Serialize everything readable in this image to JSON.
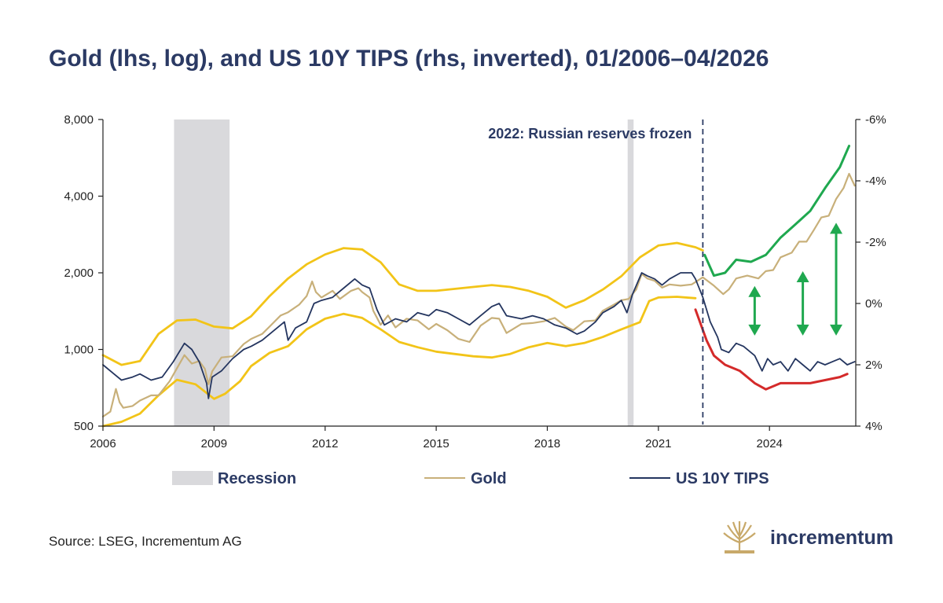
{
  "title": "Gold (lhs, log), and US 10Y TIPS (rhs, inverted), 01/2006–04/2026",
  "source": "Source: LSEG, Incrementum AG",
  "brand": {
    "name": "incrementum",
    "logo_icon": "tree-logo-icon"
  },
  "colors": {
    "title": "#2b3a64",
    "gold": "#c8b07a",
    "tips": "#24355f",
    "band": "#f2c418",
    "recession": "#d9d9dc",
    "upper_channel": "#1fa84f",
    "lower_channel": "#d42a2a",
    "arrows": "#1fa84f"
  },
  "chart_data": {
    "type": "line",
    "title": "Gold (lhs, log), and US 10Y TIPS (rhs, inverted), 01/2006–04/2026",
    "x_ticks": [
      "2006",
      "2009",
      "2012",
      "2015",
      "2018",
      "2021",
      "2024"
    ],
    "x_range": [
      2006.0,
      2026.33
    ],
    "y_left": {
      "scale": "log",
      "ylim": [
        500,
        8000
      ],
      "ticks": [
        500,
        1000,
        2000,
        4000,
        8000
      ],
      "tick_labels": [
        "500",
        "1,000",
        "2,000",
        "4,000",
        "8,000"
      ]
    },
    "y_right": {
      "inverted": true,
      "ylim": [
        4,
        -6
      ],
      "ticks": [
        -6,
        -4,
        -2,
        0,
        2,
        4
      ],
      "tick_labels": [
        "-6%",
        "-4%",
        "-2%",
        "0%",
        "2%",
        "4%"
      ]
    },
    "grid": false,
    "legend_position": "bottom",
    "legend": [
      {
        "name": "Recession",
        "kind": "box"
      },
      {
        "name": "Gold",
        "kind": "line"
      },
      {
        "name": "US 10Y TIPS",
        "kind": "line"
      }
    ],
    "recessions": [
      [
        2007.92,
        2009.42
      ],
      [
        2020.17,
        2020.33
      ]
    ],
    "annotation": {
      "text": "2022: Russian reserves frozen",
      "x": 2022.2
    },
    "series": [
      {
        "name": "Gold",
        "axis": "left",
        "points": [
          [
            2006.0,
            545
          ],
          [
            2006.2,
            570
          ],
          [
            2006.35,
            700
          ],
          [
            2006.45,
            620
          ],
          [
            2006.55,
            590
          ],
          [
            2006.8,
            600
          ],
          [
            2007.0,
            630
          ],
          [
            2007.3,
            660
          ],
          [
            2007.5,
            660
          ],
          [
            2007.8,
            750
          ],
          [
            2007.95,
            820
          ],
          [
            2008.2,
            950
          ],
          [
            2008.4,
            880
          ],
          [
            2008.6,
            900
          ],
          [
            2008.75,
            840
          ],
          [
            2008.85,
            730
          ],
          [
            2008.95,
            820
          ],
          [
            2009.2,
            930
          ],
          [
            2009.5,
            940
          ],
          [
            2009.8,
            1050
          ],
          [
            2010.0,
            1100
          ],
          [
            2010.3,
            1150
          ],
          [
            2010.5,
            1230
          ],
          [
            2010.8,
            1360
          ],
          [
            2011.0,
            1400
          ],
          [
            2011.3,
            1500
          ],
          [
            2011.5,
            1620
          ],
          [
            2011.65,
            1850
          ],
          [
            2011.75,
            1680
          ],
          [
            2011.9,
            1600
          ],
          [
            2012.2,
            1700
          ],
          [
            2012.4,
            1580
          ],
          [
            2012.7,
            1700
          ],
          [
            2012.9,
            1740
          ],
          [
            2013.0,
            1680
          ],
          [
            2013.2,
            1600
          ],
          [
            2013.3,
            1420
          ],
          [
            2013.5,
            1250
          ],
          [
            2013.7,
            1360
          ],
          [
            2013.9,
            1220
          ],
          [
            2014.2,
            1320
          ],
          [
            2014.5,
            1300
          ],
          [
            2014.8,
            1200
          ],
          [
            2015.0,
            1260
          ],
          [
            2015.3,
            1190
          ],
          [
            2015.6,
            1100
          ],
          [
            2015.9,
            1070
          ],
          [
            2016.2,
            1240
          ],
          [
            2016.5,
            1330
          ],
          [
            2016.7,
            1320
          ],
          [
            2016.9,
            1160
          ],
          [
            2017.3,
            1260
          ],
          [
            2017.6,
            1270
          ],
          [
            2017.9,
            1290
          ],
          [
            2018.2,
            1330
          ],
          [
            2018.5,
            1230
          ],
          [
            2018.7,
            1190
          ],
          [
            2019.0,
            1290
          ],
          [
            2019.3,
            1300
          ],
          [
            2019.5,
            1420
          ],
          [
            2019.8,
            1500
          ],
          [
            2020.0,
            1560
          ],
          [
            2020.2,
            1580
          ],
          [
            2020.4,
            1720
          ],
          [
            2020.55,
            1980
          ],
          [
            2020.7,
            1900
          ],
          [
            2020.9,
            1860
          ],
          [
            2021.1,
            1750
          ],
          [
            2021.3,
            1800
          ],
          [
            2021.6,
            1780
          ],
          [
            2021.9,
            1800
          ],
          [
            2022.2,
            1920
          ],
          [
            2022.5,
            1780
          ],
          [
            2022.75,
            1650
          ],
          [
            2022.9,
            1720
          ],
          [
            2023.1,
            1900
          ],
          [
            2023.4,
            1950
          ],
          [
            2023.7,
            1900
          ],
          [
            2023.9,
            2030
          ],
          [
            2024.1,
            2050
          ],
          [
            2024.3,
            2300
          ],
          [
            2024.6,
            2400
          ],
          [
            2024.8,
            2650
          ],
          [
            2025.0,
            2650
          ],
          [
            2025.2,
            2950
          ],
          [
            2025.4,
            3300
          ],
          [
            2025.6,
            3350
          ],
          [
            2025.8,
            3900
          ],
          [
            2026.0,
            4300
          ],
          [
            2026.15,
            4900
          ],
          [
            2026.3,
            4400
          ]
        ]
      },
      {
        "name": "US 10Y TIPS",
        "axis": "right",
        "points": [
          [
            2006.0,
            2.0
          ],
          [
            2006.3,
            2.3
          ],
          [
            2006.5,
            2.5
          ],
          [
            2006.8,
            2.4
          ],
          [
            2007.0,
            2.3
          ],
          [
            2007.3,
            2.5
          ],
          [
            2007.6,
            2.4
          ],
          [
            2007.9,
            1.9
          ],
          [
            2008.2,
            1.3
          ],
          [
            2008.4,
            1.5
          ],
          [
            2008.6,
            1.9
          ],
          [
            2008.8,
            2.6
          ],
          [
            2008.85,
            3.1
          ],
          [
            2008.95,
            2.4
          ],
          [
            2009.2,
            2.2
          ],
          [
            2009.5,
            1.8
          ],
          [
            2009.8,
            1.5
          ],
          [
            2010.0,
            1.4
          ],
          [
            2010.3,
            1.2
          ],
          [
            2010.6,
            0.9
          ],
          [
            2010.9,
            0.6
          ],
          [
            2011.0,
            1.2
          ],
          [
            2011.2,
            0.8
          ],
          [
            2011.5,
            0.6
          ],
          [
            2011.7,
            0.0
          ],
          [
            2011.9,
            -0.1
          ],
          [
            2012.2,
            -0.2
          ],
          [
            2012.5,
            -0.5
          ],
          [
            2012.8,
            -0.8
          ],
          [
            2013.0,
            -0.6
          ],
          [
            2013.2,
            -0.5
          ],
          [
            2013.4,
            0.2
          ],
          [
            2013.6,
            0.7
          ],
          [
            2013.9,
            0.5
          ],
          [
            2014.2,
            0.6
          ],
          [
            2014.5,
            0.3
          ],
          [
            2014.8,
            0.4
          ],
          [
            2015.0,
            0.2
          ],
          [
            2015.3,
            0.3
          ],
          [
            2015.6,
            0.5
          ],
          [
            2015.9,
            0.7
          ],
          [
            2016.2,
            0.4
          ],
          [
            2016.5,
            0.1
          ],
          [
            2016.7,
            0.0
          ],
          [
            2016.9,
            0.4
          ],
          [
            2017.3,
            0.5
          ],
          [
            2017.6,
            0.4
          ],
          [
            2017.9,
            0.5
          ],
          [
            2018.2,
            0.7
          ],
          [
            2018.5,
            0.8
          ],
          [
            2018.8,
            1.0
          ],
          [
            2019.0,
            0.9
          ],
          [
            2019.3,
            0.6
          ],
          [
            2019.5,
            0.3
          ],
          [
            2019.8,
            0.1
          ],
          [
            2020.0,
            -0.1
          ],
          [
            2020.15,
            0.3
          ],
          [
            2020.3,
            -0.3
          ],
          [
            2020.55,
            -1.0
          ],
          [
            2020.7,
            -0.9
          ],
          [
            2020.9,
            -0.8
          ],
          [
            2021.1,
            -0.6
          ],
          [
            2021.3,
            -0.8
          ],
          [
            2021.6,
            -1.0
          ],
          [
            2021.9,
            -1.0
          ],
          [
            2022.0,
            -0.8
          ],
          [
            2022.2,
            -0.2
          ],
          [
            2022.4,
            0.6
          ],
          [
            2022.6,
            1.1
          ],
          [
            2022.7,
            1.5
          ],
          [
            2022.9,
            1.6
          ],
          [
            2023.1,
            1.3
          ],
          [
            2023.3,
            1.4
          ],
          [
            2023.6,
            1.7
          ],
          [
            2023.8,
            2.2
          ],
          [
            2023.95,
            1.8
          ],
          [
            2024.1,
            2.0
          ],
          [
            2024.3,
            1.9
          ],
          [
            2024.5,
            2.2
          ],
          [
            2024.7,
            1.8
          ],
          [
            2024.9,
            2.0
          ],
          [
            2025.1,
            2.2
          ],
          [
            2025.3,
            1.9
          ],
          [
            2025.5,
            2.0
          ],
          [
            2025.7,
            1.9
          ],
          [
            2025.9,
            1.8
          ],
          [
            2026.1,
            2.0
          ],
          [
            2026.3,
            1.9
          ]
        ]
      },
      {
        "name": "",
        "axis": "left",
        "points": [
          [
            2006.0,
            950
          ],
          [
            2006.5,
            870
          ],
          [
            2007.0,
            900
          ],
          [
            2007.5,
            1150
          ],
          [
            2008.0,
            1300
          ],
          [
            2008.5,
            1310
          ],
          [
            2009.0,
            1230
          ],
          [
            2009.5,
            1210
          ],
          [
            2010.0,
            1350
          ],
          [
            2010.5,
            1620
          ],
          [
            2011.0,
            1900
          ],
          [
            2011.5,
            2160
          ],
          [
            2012.0,
            2360
          ],
          [
            2012.5,
            2500
          ],
          [
            2013.0,
            2470
          ],
          [
            2013.5,
            2200
          ],
          [
            2014.0,
            1800
          ],
          [
            2014.5,
            1700
          ],
          [
            2015.0,
            1700
          ],
          [
            2016.0,
            1760
          ],
          [
            2016.5,
            1790
          ],
          [
            2017.0,
            1760
          ],
          [
            2017.5,
            1700
          ],
          [
            2018.0,
            1610
          ],
          [
            2018.5,
            1460
          ],
          [
            2019.0,
            1560
          ],
          [
            2019.5,
            1720
          ],
          [
            2020.0,
            1940
          ],
          [
            2020.5,
            2300
          ],
          [
            2021.0,
            2560
          ],
          [
            2021.5,
            2620
          ],
          [
            2022.0,
            2520
          ],
          [
            2022.2,
            2450
          ]
        ]
      },
      {
        "name": "",
        "axis": "left",
        "points": [
          [
            2006.0,
            500
          ],
          [
            2006.5,
            520
          ],
          [
            2007.0,
            560
          ],
          [
            2007.5,
            660
          ],
          [
            2008.0,
            760
          ],
          [
            2008.5,
            730
          ],
          [
            2009.0,
            640
          ],
          [
            2009.3,
            670
          ],
          [
            2009.7,
            750
          ],
          [
            2010.0,
            860
          ],
          [
            2010.5,
            970
          ],
          [
            2011.0,
            1030
          ],
          [
            2011.5,
            1200
          ],
          [
            2012.0,
            1320
          ],
          [
            2012.5,
            1380
          ],
          [
            2013.0,
            1330
          ],
          [
            2013.5,
            1200
          ],
          [
            2014.0,
            1070
          ],
          [
            2014.5,
            1020
          ],
          [
            2015.0,
            980
          ],
          [
            2016.0,
            940
          ],
          [
            2016.5,
            930
          ],
          [
            2017.0,
            960
          ],
          [
            2017.5,
            1020
          ],
          [
            2018.0,
            1060
          ],
          [
            2018.5,
            1030
          ],
          [
            2019.0,
            1060
          ],
          [
            2019.5,
            1120
          ],
          [
            2020.0,
            1200
          ],
          [
            2020.5,
            1280
          ],
          [
            2020.75,
            1550
          ],
          [
            2021.0,
            1600
          ],
          [
            2021.5,
            1610
          ],
          [
            2022.0,
            1590
          ]
        ]
      },
      {
        "name": "",
        "axis": "left",
        "points": [
          [
            2022.25,
            2350
          ],
          [
            2022.5,
            1950
          ],
          [
            2022.8,
            2000
          ],
          [
            2023.1,
            2250
          ],
          [
            2023.5,
            2210
          ],
          [
            2023.9,
            2350
          ],
          [
            2024.3,
            2750
          ],
          [
            2024.7,
            3100
          ],
          [
            2025.1,
            3500
          ],
          [
            2025.5,
            4300
          ],
          [
            2025.9,
            5200
          ],
          [
            2026.15,
            6300
          ]
        ]
      },
      {
        "name": "",
        "axis": "right",
        "points": [
          [
            2022.0,
            0.2
          ],
          [
            2022.3,
            1.2
          ],
          [
            2022.5,
            1.7
          ],
          [
            2022.8,
            2.0
          ],
          [
            2023.2,
            2.2
          ],
          [
            2023.6,
            2.6
          ],
          [
            2023.9,
            2.8
          ],
          [
            2024.3,
            2.6
          ],
          [
            2024.7,
            2.6
          ],
          [
            2025.1,
            2.6
          ],
          [
            2025.5,
            2.5
          ],
          [
            2025.9,
            2.4
          ],
          [
            2026.1,
            2.3
          ]
        ]
      }
    ],
    "arrows": [
      {
        "x": 2023.6,
        "y_from": 1750,
        "y_to": 1150
      },
      {
        "x": 2024.9,
        "y_from": 2000,
        "y_to": 1150
      },
      {
        "x": 2025.8,
        "y_from": 3100,
        "y_to": 1150
      }
    ]
  }
}
